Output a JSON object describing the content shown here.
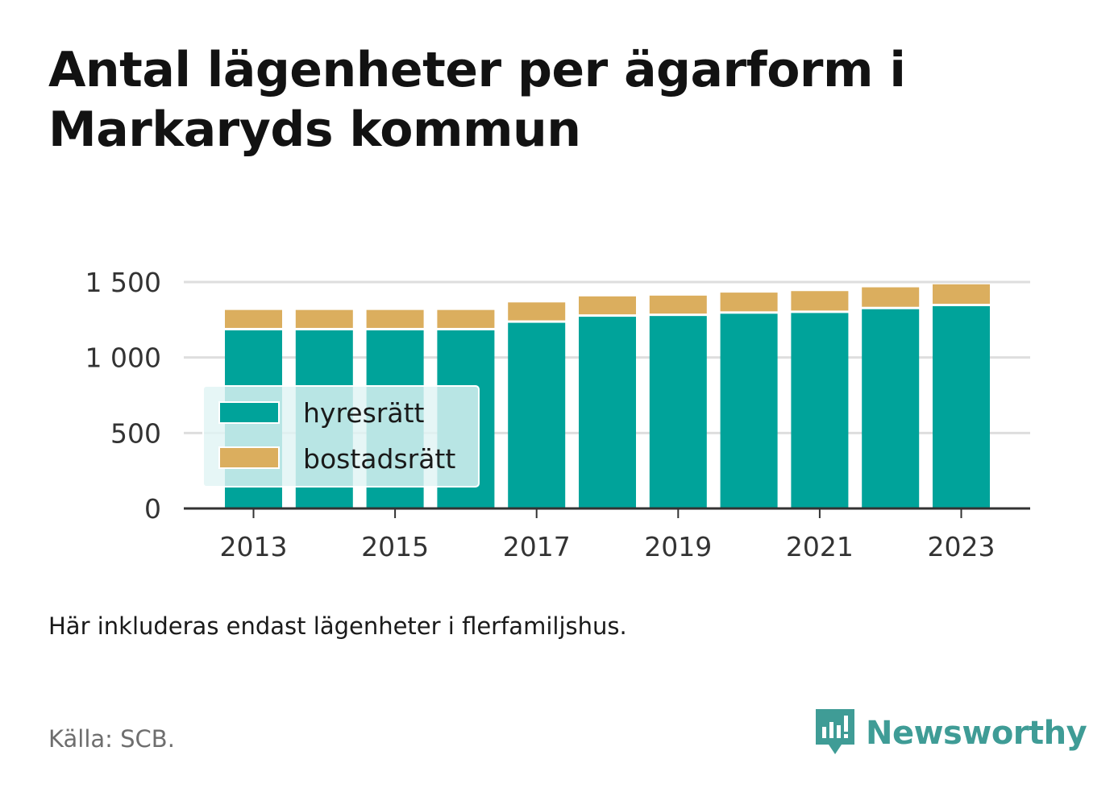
{
  "title": "Antal lägenheter per ägarform i Markaryds kommun",
  "note": "Här inkluderas endast lägenheter i flerfamiljshus.",
  "source": "Källa: SCB.",
  "brand": {
    "name": "Newsworthy",
    "icon": "newsworthy-logo-icon",
    "color": "#3f9c96"
  },
  "colors": {
    "hyresratt": "#00a39a",
    "bostadsratt": "#dbae5e",
    "grid": "#dedede",
    "axis": "#333333"
  },
  "chart_data": {
    "type": "bar",
    "stacked": true,
    "title": "Antal lägenheter per ägarform i Markaryds kommun",
    "xlabel": "",
    "ylabel": "",
    "x": [
      2013,
      2014,
      2015,
      2016,
      2017,
      2018,
      2019,
      2020,
      2021,
      2022,
      2023
    ],
    "x_tick_labels": [
      "2013",
      "2015",
      "2017",
      "2019",
      "2021",
      "2023"
    ],
    "y_ticks": [
      0,
      500,
      1000,
      1500
    ],
    "y_tick_labels": [
      "0",
      "500",
      "1 000",
      "1 500"
    ],
    "ylim": [
      0,
      1500
    ],
    "grid": true,
    "legend_position": "inside-left",
    "series": [
      {
        "name": "hyresrätt",
        "color": "#00a39a",
        "values": [
          1180,
          1180,
          1180,
          1180,
          1230,
          1270,
          1275,
          1290,
          1295,
          1320,
          1340
        ]
      },
      {
        "name": "bostadsrätt",
        "color": "#dbae5e",
        "values": [
          135,
          135,
          135,
          135,
          135,
          135,
          135,
          140,
          145,
          145,
          145
        ]
      }
    ]
  }
}
